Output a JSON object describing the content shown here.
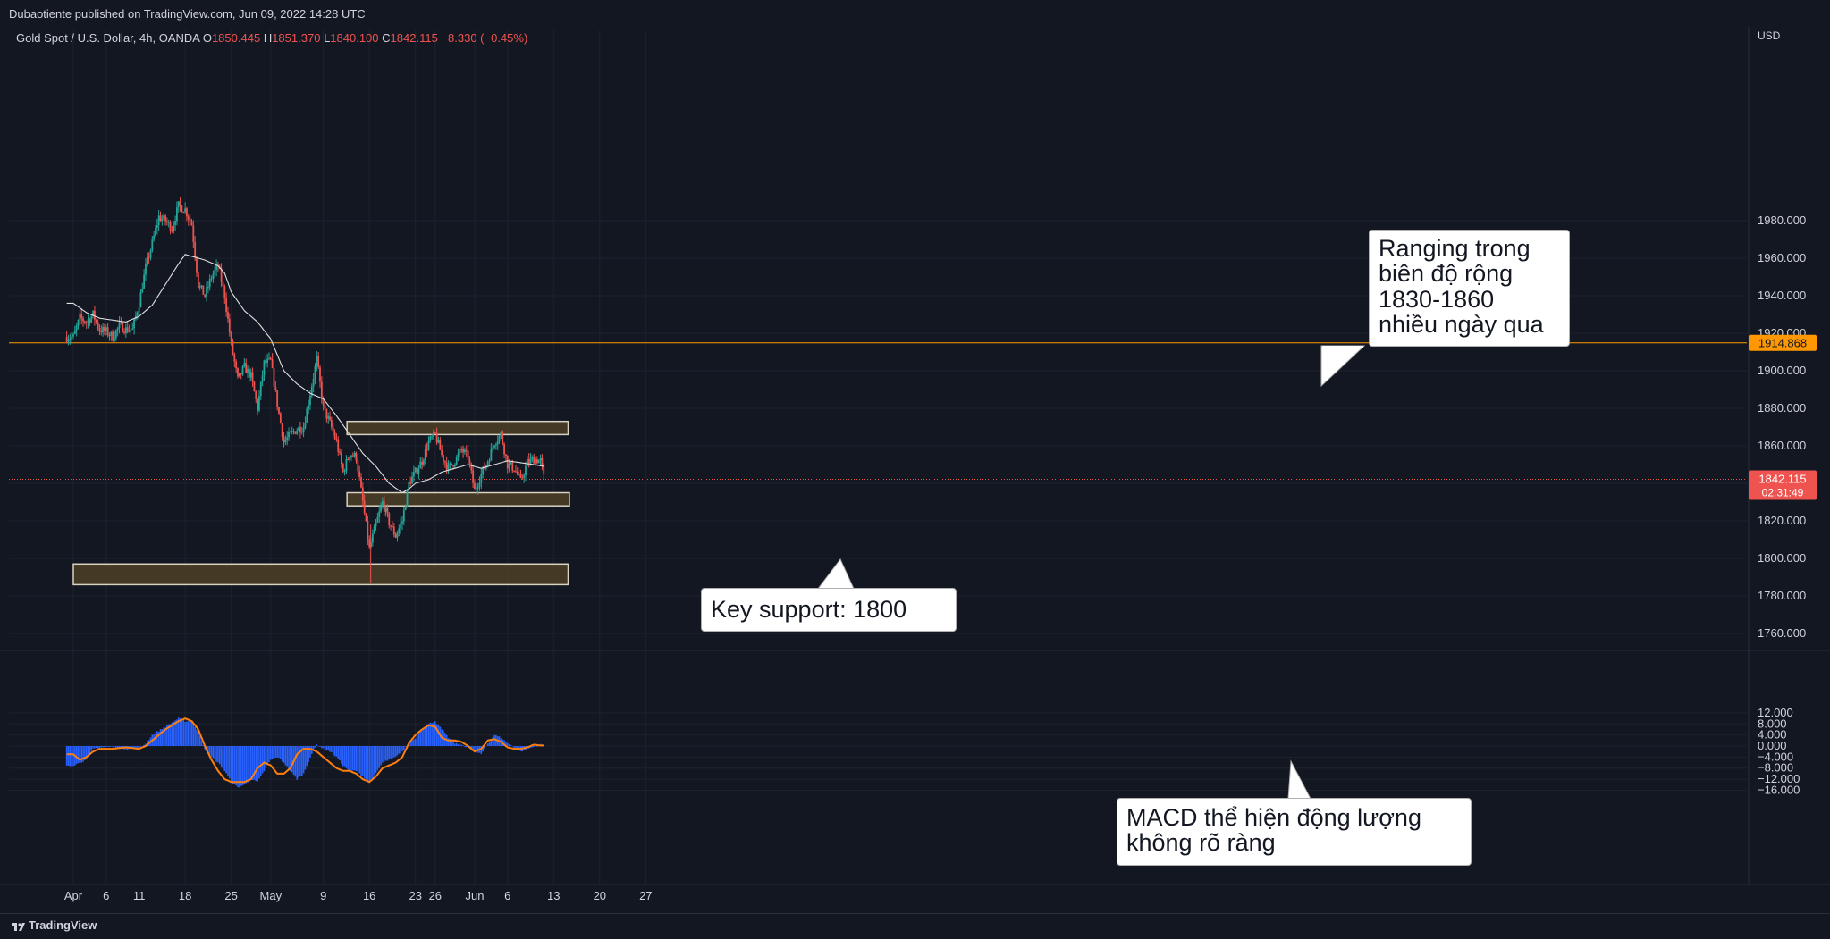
{
  "header": {
    "published": "Dubaotiente published on TradingView.com, Jun 09, 2022 14:28 UTC"
  },
  "legend": {
    "symbol": "Gold Spot / U.S. Dollar, 4h, OANDA",
    "open_label": "O",
    "open": "1850.445",
    "high_label": "H",
    "high": "1851.370",
    "low_label": "L",
    "low": "1840.100",
    "close_label": "C",
    "close": "1842.115",
    "change": "−8.330 (−0.45%)"
  },
  "footer": {
    "brand": "TradingView"
  },
  "colors": {
    "background": "#131722",
    "up": "#26a69a",
    "down": "#ef5350",
    "ma": "#e0e0e0",
    "macd_signal": "#ff7f0e",
    "histogram": "#2962ff",
    "resistance_line": "#ff9800",
    "zone_fill": "#4e3f26"
  },
  "chart_data": [
    {
      "type": "candlestick",
      "currency": "USD",
      "y_ticks": [
        "1980.000",
        "1960.000",
        "1940.000",
        "1920.000",
        "1900.000",
        "1880.000",
        "1860.000",
        "1840.000",
        "1820.000",
        "1800.000",
        "1780.000",
        "1760.000"
      ],
      "ylim": [
        1753,
        2000
      ],
      "x_labels": [
        {
          "label": "Apr",
          "day": 0
        },
        {
          "label": "6",
          "day": 5
        },
        {
          "label": "11",
          "day": 10
        },
        {
          "label": "18",
          "day": 17
        },
        {
          "label": "25",
          "day": 24
        },
        {
          "label": "May",
          "day": 30
        },
        {
          "label": "9",
          "day": 38
        },
        {
          "label": "16",
          "day": 45
        },
        {
          "label": "23",
          "day": 52
        },
        {
          "label": "26",
          "day": 55
        },
        {
          "label": "Jun",
          "day": 61
        },
        {
          "label": "6",
          "day": 66
        },
        {
          "label": "13",
          "day": 73
        },
        {
          "label": "20",
          "day": 80
        },
        {
          "label": "27",
          "day": 87
        }
      ],
      "price_path": [
        [
          0,
          1918
        ],
        [
          1,
          1928
        ],
        [
          2,
          1926
        ],
        [
          3,
          1930
        ],
        [
          4,
          1922
        ],
        [
          5,
          1921
        ],
        [
          6,
          1918
        ],
        [
          7,
          1924
        ],
        [
          8,
          1922
        ],
        [
          9,
          1922
        ],
        [
          10,
          1936
        ],
        [
          11,
          1955
        ],
        [
          12,
          1968
        ],
        [
          13,
          1982
        ],
        [
          14,
          1980
        ],
        [
          15,
          1976
        ],
        [
          16,
          1988
        ],
        [
          17,
          1986
        ],
        [
          18,
          1978
        ],
        [
          19,
          1946
        ],
        [
          20,
          1940
        ],
        [
          21,
          1950
        ],
        [
          22,
          1956
        ],
        [
          23,
          1940
        ],
        [
          24,
          1914
        ],
        [
          25,
          1895
        ],
        [
          26,
          1902
        ],
        [
          27,
          1897
        ],
        [
          28,
          1880
        ],
        [
          29,
          1904
        ],
        [
          30,
          1905
        ],
        [
          31,
          1882
        ],
        [
          32,
          1862
        ],
        [
          33,
          1866
        ],
        [
          34,
          1869
        ],
        [
          35,
          1870
        ],
        [
          36,
          1888
        ],
        [
          37,
          1906
        ],
        [
          38,
          1880
        ],
        [
          39,
          1872
        ],
        [
          40,
          1862
        ],
        [
          41,
          1846
        ],
        [
          42,
          1856
        ],
        [
          43,
          1854
        ],
        [
          44,
          1830
        ],
        [
          45,
          1805
        ],
        [
          46,
          1818
        ],
        [
          47,
          1830
        ],
        [
          48,
          1819
        ],
        [
          49,
          1812
        ],
        [
          50,
          1820
        ],
        [
          51,
          1840
        ],
        [
          52,
          1846
        ],
        [
          53,
          1852
        ],
        [
          54,
          1862
        ],
        [
          55,
          1866
        ],
        [
          56,
          1855
        ],
        [
          57,
          1848
        ],
        [
          58,
          1852
        ],
        [
          59,
          1858
        ],
        [
          60,
          1854
        ],
        [
          61,
          1836
        ],
        [
          62,
          1845
        ],
        [
          63,
          1852
        ],
        [
          64,
          1862
        ],
        [
          65,
          1866
        ],
        [
          66,
          1850
        ],
        [
          67,
          1848
        ],
        [
          68,
          1841
        ],
        [
          69,
          1851
        ],
        [
          70,
          1853
        ],
        [
          71,
          1852
        ],
        [
          71.6,
          1842
        ]
      ],
      "moving_average": [
        [
          0,
          1936
        ],
        [
          2,
          1931
        ],
        [
          4,
          1928
        ],
        [
          6,
          1927
        ],
        [
          8,
          1926
        ],
        [
          10,
          1929
        ],
        [
          12,
          1935
        ],
        [
          14,
          1946
        ],
        [
          16,
          1957
        ],
        [
          17,
          1962
        ],
        [
          18,
          1961
        ],
        [
          20,
          1959
        ],
        [
          22,
          1956
        ],
        [
          23,
          1952
        ],
        [
          24,
          1942
        ],
        [
          26,
          1932
        ],
        [
          28,
          1926
        ],
        [
          30,
          1917
        ],
        [
          32,
          1900
        ],
        [
          34,
          1893
        ],
        [
          36,
          1888
        ],
        [
          38,
          1885
        ],
        [
          40,
          1876
        ],
        [
          42,
          1866
        ],
        [
          44,
          1856
        ],
        [
          46,
          1849
        ],
        [
          48,
          1840
        ],
        [
          50,
          1835
        ],
        [
          51,
          1837
        ],
        [
          52,
          1840
        ],
        [
          54,
          1842
        ],
        [
          56,
          1846
        ],
        [
          58,
          1848
        ],
        [
          60,
          1850
        ],
        [
          62,
          1848
        ],
        [
          64,
          1850
        ],
        [
          66,
          1852
        ],
        [
          68,
          1851
        ],
        [
          70,
          1850
        ],
        [
          71.6,
          1849
        ]
      ],
      "resistance_line": 1914.868,
      "resistance_label": "1914.868",
      "last_price_label": "1842.115",
      "countdown": "02:31:49",
      "zones": [
        {
          "from_day": 41.6,
          "to_day": 75.2,
          "low": 1866,
          "high": 1873
        },
        {
          "from_day": 41.6,
          "to_day": 75.4,
          "low": 1828,
          "high": 1835
        },
        {
          "from_day": 0,
          "to_day": 75.2,
          "low": 1786,
          "high": 1797
        }
      ]
    },
    {
      "type": "macd",
      "y_ticks": [
        "12.000",
        "8.000",
        "4.000",
        "0.000",
        "−4.000",
        "−8.000",
        "−12.000",
        "−16.000"
      ],
      "ylim": [
        -18,
        13
      ],
      "histogram": [
        [
          0,
          -7
        ],
        [
          2,
          -5
        ],
        [
          3,
          -1
        ],
        [
          4,
          -0.5
        ],
        [
          6,
          -0.3
        ],
        [
          8,
          -1
        ],
        [
          10,
          -1
        ],
        [
          11,
          1
        ],
        [
          12,
          4
        ],
        [
          14,
          7
        ],
        [
          16,
          10
        ],
        [
          17,
          9
        ],
        [
          18,
          9
        ],
        [
          19,
          5
        ],
        [
          20,
          -1
        ],
        [
          21,
          -4
        ],
        [
          22,
          -6
        ],
        [
          23,
          -9
        ],
        [
          24,
          -13
        ],
        [
          25,
          -15
        ],
        [
          26,
          -14
        ],
        [
          27,
          -12
        ],
        [
          28,
          -13
        ],
        [
          29,
          -9
        ],
        [
          30,
          -5
        ],
        [
          31,
          -4
        ],
        [
          32,
          -6
        ],
        [
          33,
          -9
        ],
        [
          34,
          -12
        ],
        [
          35,
          -10
        ],
        [
          36,
          -4
        ],
        [
          37,
          0.5
        ],
        [
          38,
          -1
        ],
        [
          39,
          -2
        ],
        [
          40,
          -4
        ],
        [
          41,
          -7
        ],
        [
          42,
          -9
        ],
        [
          43,
          -9
        ],
        [
          44,
          -11
        ],
        [
          45,
          -13
        ],
        [
          46,
          -10
        ],
        [
          47,
          -6
        ],
        [
          48,
          -5
        ],
        [
          49,
          -4
        ],
        [
          50,
          -2
        ],
        [
          51,
          1
        ],
        [
          52,
          3
        ],
        [
          53,
          6
        ],
        [
          54,
          8
        ],
        [
          55,
          9
        ],
        [
          56,
          6
        ],
        [
          57,
          3
        ],
        [
          58,
          1
        ],
        [
          59,
          0.5
        ],
        [
          60,
          -0.5
        ],
        [
          61,
          -2
        ],
        [
          62,
          -3
        ],
        [
          63,
          1
        ],
        [
          64,
          4
        ],
        [
          65,
          3
        ],
        [
          66,
          1
        ],
        [
          67,
          -0.5
        ],
        [
          68,
          -2
        ],
        [
          69,
          -1
        ],
        [
          70,
          -0.3
        ],
        [
          71,
          0.5
        ],
        [
          71.6,
          0.3
        ]
      ],
      "signal": [
        [
          0,
          -3
        ],
        [
          1,
          -5
        ],
        [
          2,
          -4
        ],
        [
          3,
          -2
        ],
        [
          4,
          -1
        ],
        [
          6,
          -1
        ],
        [
          8,
          -0.5
        ],
        [
          10,
          -1
        ],
        [
          11,
          0
        ],
        [
          12,
          2
        ],
        [
          14,
          6
        ],
        [
          16,
          9
        ],
        [
          17,
          10
        ],
        [
          18,
          9
        ],
        [
          19,
          6
        ],
        [
          20,
          0
        ],
        [
          21,
          -5
        ],
        [
          22,
          -9
        ],
        [
          23,
          -12
        ],
        [
          24,
          -13
        ],
        [
          26,
          -13
        ],
        [
          27,
          -12
        ],
        [
          28,
          -8
        ],
        [
          29,
          -6
        ],
        [
          30,
          -7
        ],
        [
          31,
          -10
        ],
        [
          32,
          -10
        ],
        [
          33,
          -8
        ],
        [
          34,
          -3
        ],
        [
          35,
          -1
        ],
        [
          36,
          -1
        ],
        [
          37,
          -2
        ],
        [
          38,
          -4
        ],
        [
          39,
          -6
        ],
        [
          40,
          -8
        ],
        [
          41,
          -9
        ],
        [
          42,
          -9
        ],
        [
          43,
          -10
        ],
        [
          44,
          -12
        ],
        [
          45,
          -13
        ],
        [
          46,
          -11
        ],
        [
          47,
          -8
        ],
        [
          48,
          -7
        ],
        [
          49,
          -6
        ],
        [
          50,
          -4
        ],
        [
          51,
          1
        ],
        [
          52,
          4
        ],
        [
          53,
          6
        ],
        [
          54,
          7.5
        ],
        [
          55,
          7
        ],
        [
          56,
          3
        ],
        [
          57,
          2
        ],
        [
          58,
          2
        ],
        [
          59,
          1.5
        ],
        [
          60,
          0
        ],
        [
          61,
          -2
        ],
        [
          62,
          -1
        ],
        [
          63,
          2
        ],
        [
          64,
          2.5
        ],
        [
          65,
          1.5
        ],
        [
          66,
          -0.5
        ],
        [
          67,
          -1
        ],
        [
          68,
          -1
        ],
        [
          69,
          -0.5
        ],
        [
          70,
          0.5
        ],
        [
          71,
          0.2
        ]
      ]
    }
  ],
  "annotations": {
    "ranging": [
      "Ranging trong",
      "biên độ rộng",
      "1830-1860",
      "nhiều ngày qua"
    ],
    "support": [
      "Key support: 1800"
    ],
    "macd": [
      "MACD thể hiện động lượng",
      "không rõ ràng"
    ]
  }
}
